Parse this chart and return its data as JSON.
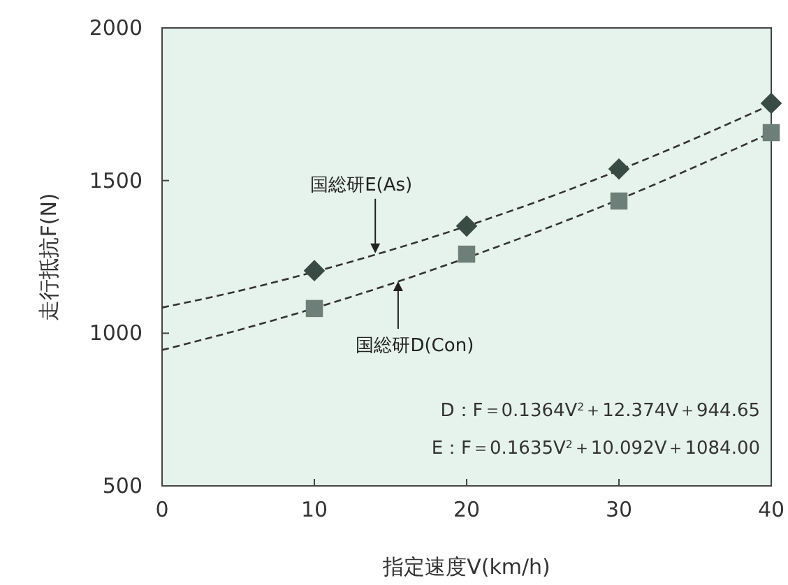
{
  "chart_data": {
    "type": "scatter",
    "xlabel": "指定速度V(km/h)",
    "ylabel": "走行抵抗F(N)",
    "xlim": [
      0,
      40
    ],
    "xticks": [
      0,
      10,
      20,
      30,
      40
    ],
    "ylim": [
      500,
      2000
    ],
    "yticks": [
      500,
      1000,
      1500,
      2000
    ],
    "grid": false,
    "series": [
      {
        "marker": "diamond",
        "color": "#3a4a44",
        "x": [
          10,
          20,
          30,
          40
        ],
        "values": [
          1205,
          1351,
          1538,
          1753
        ]
      },
      {
        "marker": "square",
        "color": "#6e7e78",
        "x": [
          10,
          20,
          30,
          40
        ],
        "values": [
          1081,
          1259,
          1433,
          1657
        ]
      },
      {
        "type": "line",
        "line_style": "dashed",
        "color": "#333333",
        "x": [
          0,
          5,
          10,
          15,
          20,
          25,
          30,
          35,
          40
        ],
        "values": [
          1084,
          1138,
          1201,
          1272,
          1351,
          1438,
          1534,
          1638,
          1749
        ]
      },
      {
        "type": "line",
        "line_style": "dashed",
        "color": "#333333",
        "x": [
          0,
          5,
          10,
          15,
          20,
          25,
          30,
          35,
          40
        ],
        "values": [
          945,
          1010,
          1082,
          1161,
          1247,
          1339,
          1438,
          1545,
          1657
        ]
      }
    ],
    "annotations": [
      {
        "text": "国総研E(As)",
        "x": 14,
        "y": 1262
      },
      {
        "text": "国総研D(Con)",
        "x": 15.5,
        "y": 1170
      },
      "D：F＝0.1364V$^{2}$＋12.374V＋944.65",
      "E：F＝0.1635V$^{2}$＋10.092V＋1084.00"
    ]
  }
}
